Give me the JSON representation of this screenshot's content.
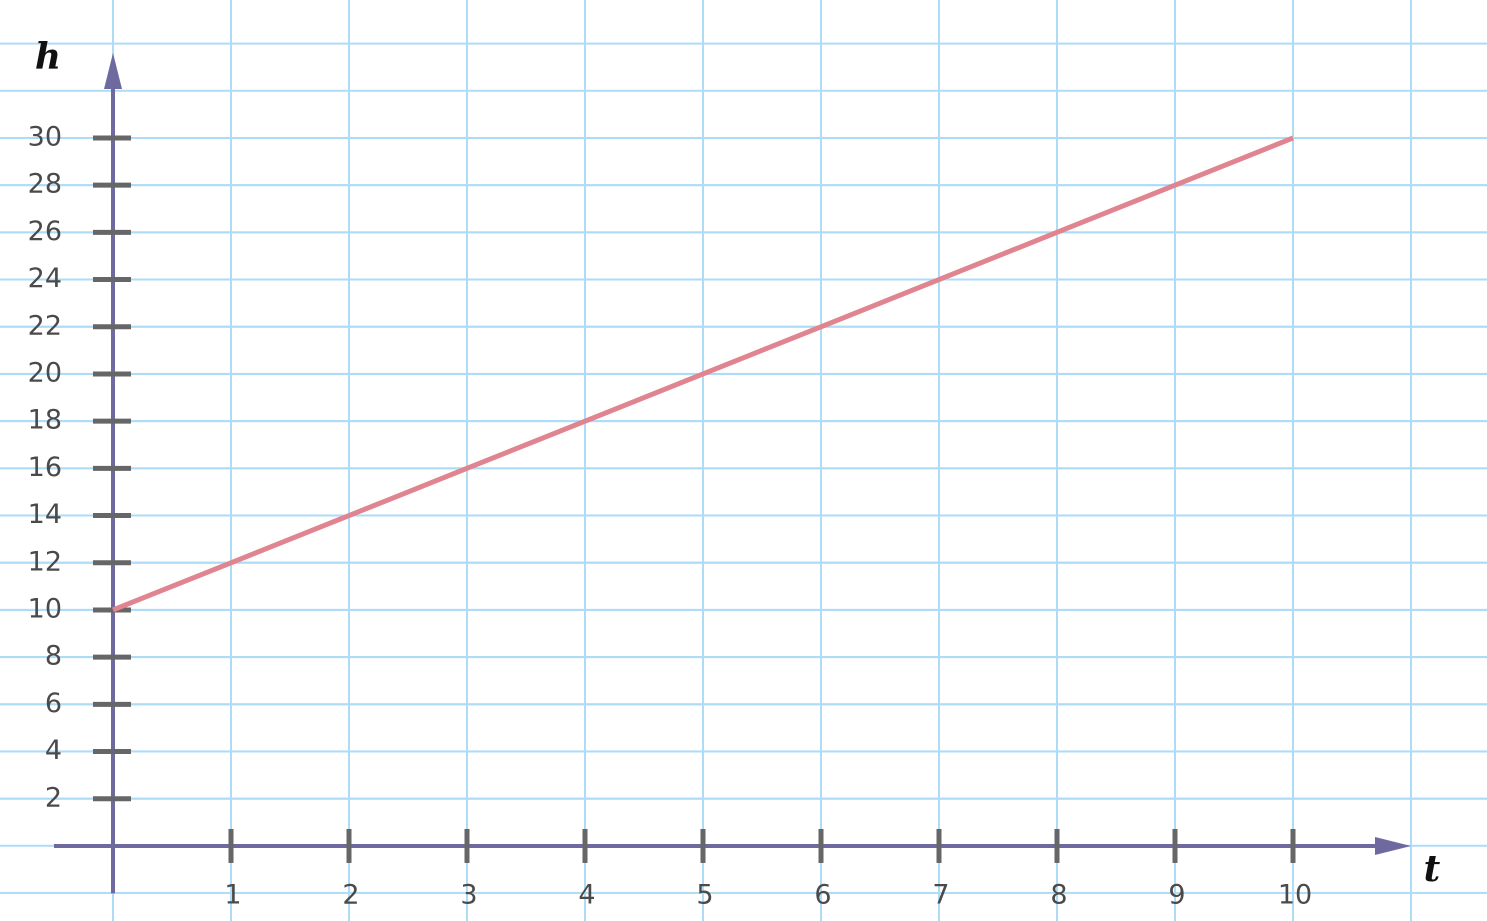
{
  "chart_data": {
    "type": "line",
    "x_label": "t",
    "y_label": "h",
    "x": [
      0,
      1,
      2,
      3,
      4,
      5,
      6,
      7,
      8,
      9,
      10
    ],
    "series": [
      {
        "color": "#e0848f",
        "values": [
          10,
          12,
          14,
          16,
          18,
          20,
          22,
          24,
          26,
          28,
          30
        ]
      }
    ],
    "xlim": [
      -0.5,
      11
    ],
    "ylim": [
      -0.4,
      33.6
    ],
    "xticks": [
      1,
      2,
      3,
      4,
      5,
      6,
      7,
      8,
      9,
      10
    ],
    "yticks": [
      2,
      4,
      6,
      8,
      10,
      12,
      14,
      16,
      18,
      20,
      22,
      24,
      26,
      28,
      30
    ],
    "grid": true
  }
}
